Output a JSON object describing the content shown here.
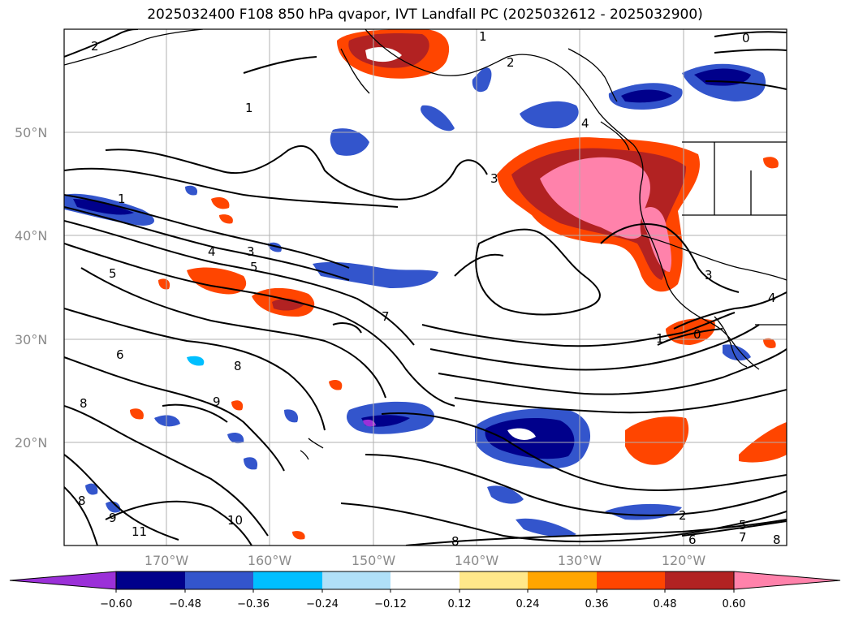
{
  "title": "2025032400 F108 850 hPa qvapor, IVT Landfall PC (2025032612 - 2025032900)",
  "map": {
    "lat_labels": [
      "50°N",
      "40°N",
      "30°N",
      "20°N"
    ],
    "lon_labels": [
      "170°W",
      "160°W",
      "150°W",
      "140°W",
      "130°W",
      "120°W"
    ],
    "contour_labels": [
      "2",
      "1",
      "2",
      "0",
      "1",
      "1",
      "4",
      "4",
      "3",
      "5",
      "5",
      "7",
      "6",
      "8",
      "8",
      "9",
      "8",
      "9",
      "11",
      "10",
      "8",
      "6",
      "5",
      "2",
      "3",
      "3",
      "0",
      "1",
      "4",
      "7",
      "8"
    ]
  },
  "colorbar": {
    "ticks": [
      "−0.60",
      "−0.48",
      "−0.36",
      "−0.24",
      "−0.12",
      "0.12",
      "0.24",
      "0.36",
      "0.48",
      "0.60"
    ],
    "colors": [
      "#9b30d8",
      "#00008b",
      "#3355cc",
      "#00bfff",
      "#b0e0f8",
      "#ffffff",
      "#ffe88a",
      "#ffa500",
      "#ff4500",
      "#b22222",
      "#ff82ab"
    ]
  }
}
